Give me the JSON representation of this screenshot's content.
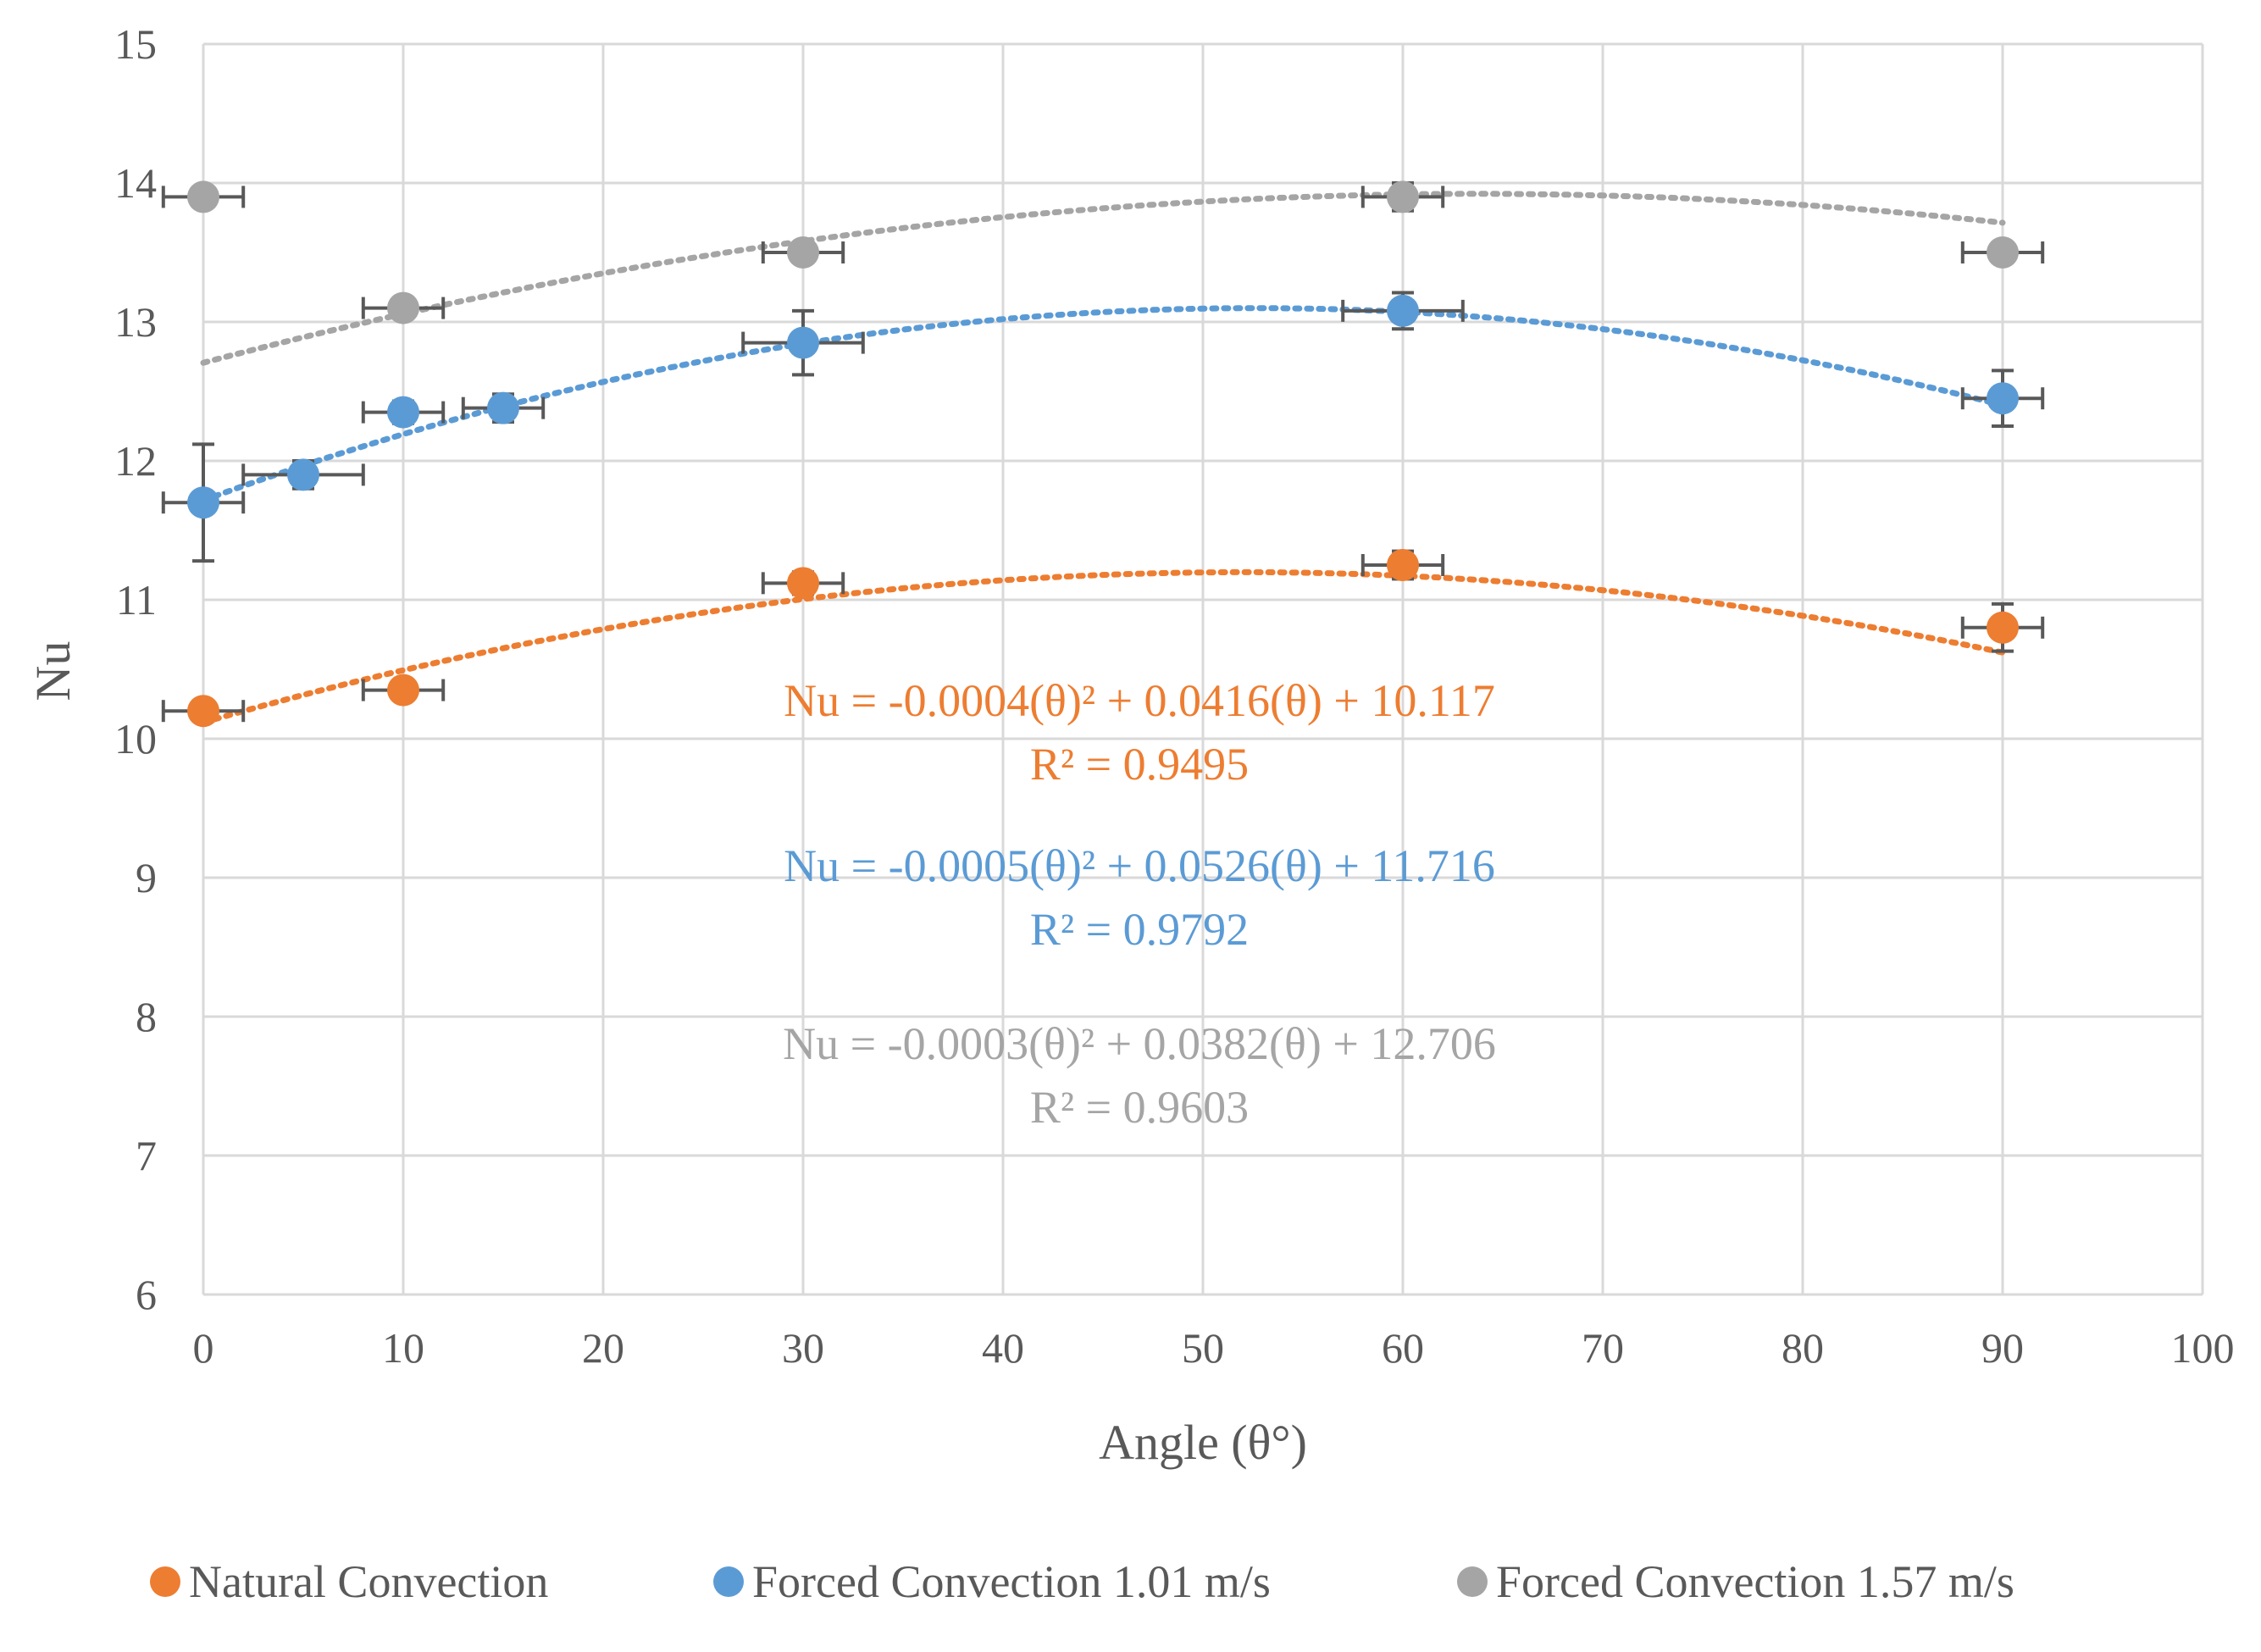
{
  "chart_data": {
    "type": "scatter",
    "title": "",
    "xlabel": "Angle (θ°)",
    "ylabel": "Nu",
    "xlim": [
      0,
      100
    ],
    "ylim": [
      6,
      15
    ],
    "xticks": [
      0,
      10,
      20,
      30,
      40,
      50,
      60,
      70,
      80,
      90,
      100
    ],
    "yticks": [
      6,
      7,
      8,
      9,
      10,
      11,
      12,
      13,
      14,
      15
    ],
    "grid": true,
    "legend_position": "bottom",
    "series": [
      {
        "name": "Natural Convection",
        "color": "#ED7D31",
        "x": [
          0,
          10,
          30,
          60,
          90
        ],
        "y": [
          10.2,
          10.35,
          11.12,
          11.25,
          10.8
        ],
        "xerr": [
          2,
          2,
          2,
          2,
          2
        ],
        "yerr": [
          0.05,
          0.05,
          0.08,
          0.1,
          0.17
        ],
        "trendline": {
          "type": "polynomial",
          "coefficients": [
            -0.0004,
            0.0416,
            10.117
          ],
          "equation": "Nu = -0.0004(θ)² + 0.0416(θ) + 10.117",
          "r2": "R² = 0.9495"
        }
      },
      {
        "name": "Forced Convection 1.01 m/s",
        "color": "#5B9BD5",
        "x": [
          0,
          5,
          10,
          15,
          30,
          60,
          90
        ],
        "y": [
          11.7,
          11.9,
          12.35,
          12.38,
          12.85,
          13.08,
          12.45
        ],
        "xerr": [
          2,
          3,
          2,
          2,
          3,
          3,
          2
        ],
        "yerr": [
          0.42,
          0.1,
          0.08,
          0.1,
          0.23,
          0.13,
          0.2
        ],
        "trendline": {
          "type": "polynomial",
          "coefficients": [
            -0.0005,
            0.0526,
            11.716
          ],
          "equation": "Nu = -0.0005(θ)² + 0.0526(θ) + 11.716",
          "r2": "R² = 0.9792"
        }
      },
      {
        "name": "Forced Convection 1.57 m/s",
        "color": "#A5A5A5",
        "x": [
          0,
          10,
          30,
          60,
          90
        ],
        "y": [
          13.9,
          13.1,
          13.5,
          13.9,
          13.5
        ],
        "xerr": [
          2,
          2,
          2,
          2,
          2
        ],
        "yerr": [
          0.05,
          0.07,
          0.05,
          0.1,
          0.05
        ],
        "trendline": {
          "type": "polynomial",
          "coefficients": [
            -0.0003,
            0.0382,
            12.706
          ],
          "equation": "Nu = -0.0003(θ)² + 0.0382(θ) + 12.706",
          "r2": "R² = 0.9603"
        }
      }
    ]
  }
}
